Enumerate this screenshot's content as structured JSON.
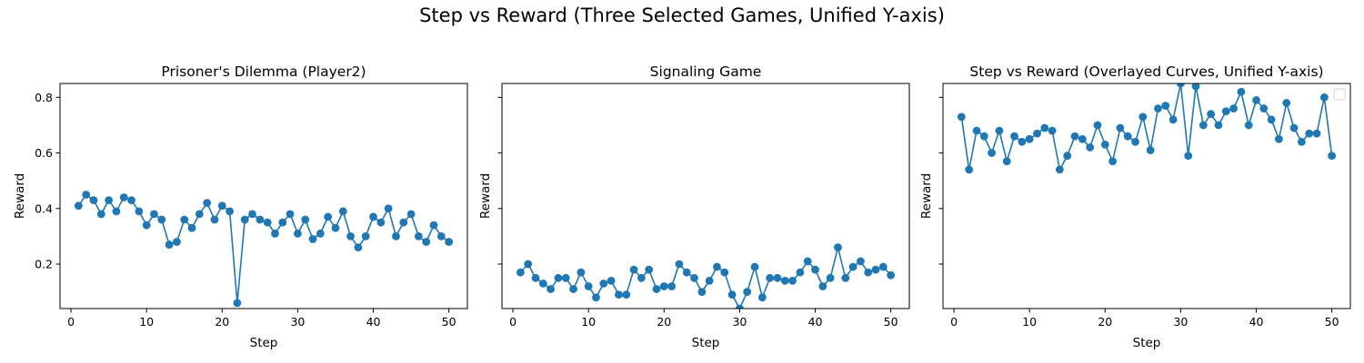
{
  "figure": {
    "suptitle": "Step vs Reward (Three Selected Games, Unified Y-axis)"
  },
  "style": {
    "series_color": "#1f77b4",
    "axis_color": "#000000",
    "background": "#ffffff"
  },
  "chart_data": [
    {
      "type": "line",
      "title": "Prisoner's Dilemma (Player2)",
      "xlabel": "Step",
      "ylabel": "Reward",
      "xlim": [
        -1.45,
        52.45
      ],
      "ylim": [
        0.04,
        0.85
      ],
      "xticks": [
        0,
        10,
        20,
        30,
        40,
        50
      ],
      "yticks": [
        0.2,
        0.4,
        0.6,
        0.8
      ],
      "show_ytick_labels": true,
      "grid": false,
      "markers": true,
      "x": [
        1,
        2,
        3,
        4,
        5,
        6,
        7,
        8,
        9,
        10,
        11,
        12,
        13,
        14,
        15,
        16,
        17,
        18,
        19,
        20,
        21,
        22,
        23,
        24,
        25,
        26,
        27,
        28,
        29,
        30,
        31,
        32,
        33,
        34,
        35,
        36,
        37,
        38,
        39,
        40,
        41,
        42,
        43,
        44,
        45,
        46,
        47,
        48,
        49,
        50
      ],
      "y": [
        0.41,
        0.45,
        0.43,
        0.38,
        0.43,
        0.39,
        0.44,
        0.43,
        0.39,
        0.34,
        0.38,
        0.36,
        0.27,
        0.28,
        0.36,
        0.33,
        0.38,
        0.42,
        0.36,
        0.41,
        0.39,
        0.06,
        0.36,
        0.38,
        0.36,
        0.35,
        0.31,
        0.35,
        0.38,
        0.31,
        0.36,
        0.29,
        0.31,
        0.37,
        0.33,
        0.39,
        0.3,
        0.26,
        0.3,
        0.37,
        0.35,
        0.4,
        0.3,
        0.35,
        0.38,
        0.3,
        0.28,
        0.34,
        0.3,
        0.28
      ]
    },
    {
      "type": "line",
      "title": "Signaling Game",
      "xlabel": "Step",
      "ylabel": "Reward",
      "xlim": [
        -1.45,
        52.45
      ],
      "ylim": [
        0.04,
        0.85
      ],
      "xticks": [
        0,
        10,
        20,
        30,
        40,
        50
      ],
      "yticks": [
        0.2,
        0.4,
        0.6,
        0.8
      ],
      "show_ytick_labels": false,
      "grid": false,
      "markers": true,
      "x": [
        1,
        2,
        3,
        4,
        5,
        6,
        7,
        8,
        9,
        10,
        11,
        12,
        13,
        14,
        15,
        16,
        17,
        18,
        19,
        20,
        21,
        22,
        23,
        24,
        25,
        26,
        27,
        28,
        29,
        30,
        31,
        32,
        33,
        34,
        35,
        36,
        37,
        38,
        39,
        40,
        41,
        42,
        43,
        44,
        45,
        46,
        47,
        48,
        49,
        50
      ],
      "y": [
        0.17,
        0.2,
        0.15,
        0.13,
        0.11,
        0.15,
        0.15,
        0.11,
        0.17,
        0.12,
        0.08,
        0.13,
        0.14,
        0.09,
        0.09,
        0.18,
        0.15,
        0.18,
        0.11,
        0.12,
        0.12,
        0.2,
        0.17,
        0.15,
        0.1,
        0.14,
        0.19,
        0.17,
        0.09,
        0.04,
        0.1,
        0.19,
        0.08,
        0.15,
        0.15,
        0.14,
        0.14,
        0.17,
        0.21,
        0.18,
        0.12,
        0.15,
        0.26,
        0.15,
        0.19,
        0.21,
        0.17,
        0.18,
        0.19,
        0.16
      ]
    },
    {
      "type": "line",
      "title": "Step vs Reward (Overlayed Curves, Unified Y-axis)",
      "xlabel": "Step",
      "ylabel": "Reward",
      "xlim": [
        -1.45,
        52.45
      ],
      "ylim": [
        0.04,
        0.85
      ],
      "xticks": [
        0,
        10,
        20,
        30,
        40,
        50
      ],
      "yticks": [
        0.2,
        0.4,
        0.6,
        0.8
      ],
      "show_ytick_labels": false,
      "grid": false,
      "markers": true,
      "legend": "top-right",
      "x": [
        1,
        2,
        3,
        4,
        5,
        6,
        7,
        8,
        9,
        10,
        11,
        12,
        13,
        14,
        15,
        16,
        17,
        18,
        19,
        20,
        21,
        22,
        23,
        24,
        25,
        26,
        27,
        28,
        29,
        30,
        31,
        32,
        33,
        34,
        35,
        36,
        37,
        38,
        39,
        40,
        41,
        42,
        43,
        44,
        45,
        46,
        47,
        48,
        49,
        50
      ],
      "y": [
        0.73,
        0.54,
        0.68,
        0.66,
        0.6,
        0.68,
        0.57,
        0.66,
        0.64,
        0.65,
        0.67,
        0.69,
        0.68,
        0.54,
        0.59,
        0.66,
        0.65,
        0.62,
        0.7,
        0.63,
        0.57,
        0.69,
        0.66,
        0.64,
        0.73,
        0.61,
        0.76,
        0.77,
        0.72,
        0.85,
        0.59,
        0.84,
        0.7,
        0.74,
        0.7,
        0.75,
        0.76,
        0.82,
        0.7,
        0.79,
        0.76,
        0.72,
        0.65,
        0.78,
        0.69,
        0.64,
        0.67,
        0.67,
        0.8,
        0.59
      ]
    }
  ]
}
